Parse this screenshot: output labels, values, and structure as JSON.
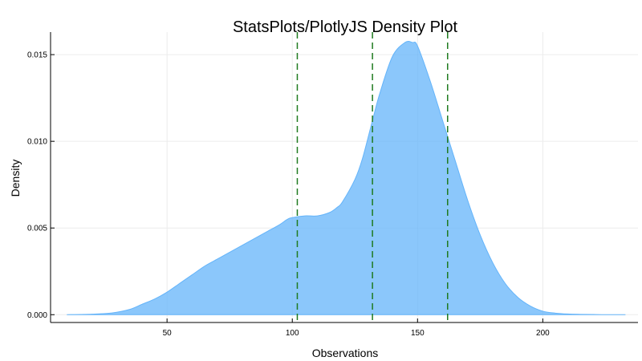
{
  "chart_data": {
    "type": "area",
    "title": "StatsPlots/PlotlyJS Density Plot",
    "xlabel": "Observations",
    "ylabel": "Density",
    "xlim": [
      3.5,
      238
    ],
    "ylim": [
      -0.00045,
      0.0163
    ],
    "grid": true,
    "legend": "none",
    "x_ticks": [
      50,
      100,
      150,
      200
    ],
    "x_tick_labels": [
      "50",
      "100",
      "150",
      "200"
    ],
    "y_ticks": [
      0.0,
      0.005,
      0.01,
      0.015
    ],
    "y_tick_labels": [
      "0.000",
      "0.005",
      "0.010",
      "0.015"
    ],
    "series": [
      {
        "name": "density",
        "color": "#64b4fa",
        "x": [
          10,
          20,
          28,
          35,
          40,
          45,
          50,
          55,
          60,
          65,
          70,
          75,
          80,
          85,
          90,
          95,
          98,
          100,
          105,
          110,
          115,
          118,
          120,
          125,
          128,
          132,
          135,
          140,
          145,
          148,
          150,
          155,
          160,
          165,
          170,
          175,
          180,
          185,
          190,
          195,
          200,
          205,
          210,
          215,
          220,
          225,
          233
        ],
        "y": [
          0.0,
          3e-05,
          0.0001,
          0.0003,
          0.0006,
          0.0009,
          0.0013,
          0.0018,
          0.0023,
          0.0028,
          0.0032,
          0.0036,
          0.004,
          0.0044,
          0.0048,
          0.0052,
          0.0055,
          0.0056,
          0.0057,
          0.0057,
          0.0059,
          0.0062,
          0.0065,
          0.0078,
          0.009,
          0.0112,
          0.0128,
          0.0149,
          0.0157,
          0.0157,
          0.0155,
          0.0135,
          0.0112,
          0.0089,
          0.0066,
          0.0046,
          0.003,
          0.0018,
          0.001,
          0.0005,
          0.0002,
          9e-05,
          4e-05,
          2e-05,
          1e-05,
          0.0,
          0.0
        ]
      }
    ],
    "vlines": {
      "color": "#1f7a1f",
      "style": "dashed",
      "x": [
        102,
        132,
        162
      ]
    }
  }
}
